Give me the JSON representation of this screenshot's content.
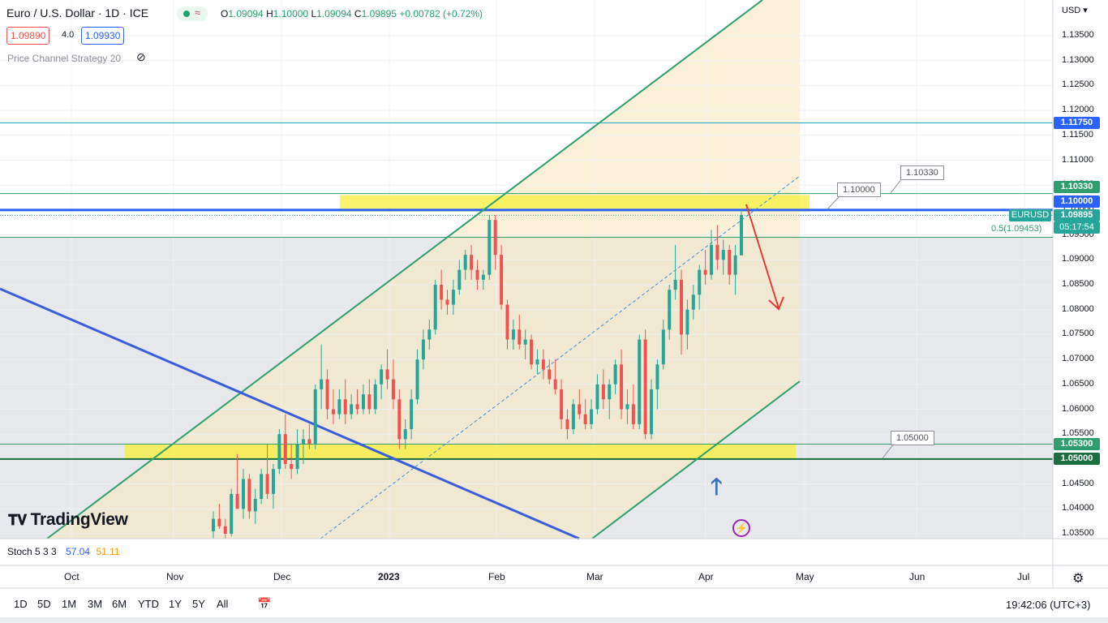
{
  "header": {
    "symbol_title": "Euro / U.S. Dollar · 1D · ICE",
    "ohlc": {
      "o_label": "O",
      "o_value": "1.09094",
      "h_label": "H",
      "h_value": "1.10000",
      "l_label": "L",
      "l_value": "1.09094",
      "c_label": "C",
      "c_value": "1.09895",
      "change": "+0.00782 (+0.72%)"
    },
    "sell_price": "1.09890",
    "spread": "4.0",
    "buy_price": "1.09930",
    "indicator_name": "Price Channel Strategy 20"
  },
  "price_axis": {
    "currency": "USD",
    "ticks": [
      "1.13500",
      "1.13000",
      "1.12500",
      "1.12000",
      "1.11500",
      "1.11000",
      "1.10500",
      "1.10000",
      "1.09500",
      "1.09000",
      "1.08500",
      "1.08000",
      "1.07500",
      "1.07000",
      "1.06500",
      "1.06000",
      "1.05500",
      "1.05000",
      "1.04500",
      "1.04000",
      "1.03500"
    ]
  },
  "price_tags": {
    "level_1": "1.11750",
    "level_2": "1.10330",
    "level_3": "1.10000",
    "symbol": "EURUSD",
    "last": "1.09895",
    "countdown": "05:17:54",
    "fib": "0.5(1.09453)",
    "level_4": "1.05300",
    "level_5": "1.05000"
  },
  "callouts": {
    "c1": "1.10330",
    "c2": "1.10000",
    "c3": "1.05000"
  },
  "time_axis": [
    "Oct",
    "Nov",
    "Dec",
    "2023",
    "Feb",
    "Mar",
    "Apr",
    "May",
    "Jun",
    "Jul"
  ],
  "stochastic": {
    "name": "Stoch 5 3 3",
    "k": "57.04",
    "d": "51.11"
  },
  "watermark": "TradingView",
  "timeframes": [
    "1D",
    "5D",
    "1M",
    "3M",
    "6M",
    "YTD",
    "1Y",
    "5Y",
    "All"
  ],
  "clock": "19:42:06 (UTC+3)",
  "colors": {
    "up": "#26a69a",
    "down": "#ef5350",
    "channel": "#2e9e6e",
    "trendline": "#3a5ed9",
    "highlight": "#f7f03a",
    "level_line": "#2962ff"
  },
  "chart_data": {
    "type": "candlestick",
    "y_unit": "USD",
    "ylim": [
      1.0335,
      1.1385
    ],
    "candles": [
      [
        1.0355,
        1.0395,
        1.034,
        1.038
      ],
      [
        1.038,
        1.041,
        1.036,
        1.0365
      ],
      [
        1.0365,
        1.038,
        1.034,
        1.035
      ],
      [
        1.035,
        1.044,
        1.0345,
        1.043
      ],
      [
        1.043,
        1.051,
        1.04,
        1.04
      ],
      [
        1.04,
        1.048,
        1.038,
        1.046
      ],
      [
        1.046,
        1.047,
        1.038,
        1.0395
      ],
      [
        1.0395,
        1.044,
        1.037,
        1.042
      ],
      [
        1.042,
        1.048,
        1.041,
        1.047
      ],
      [
        1.047,
        1.053,
        1.042,
        1.043
      ],
      [
        1.043,
        1.049,
        1.04,
        1.048
      ],
      [
        1.048,
        1.056,
        1.047,
        1.055
      ],
      [
        1.055,
        1.059,
        1.048,
        1.049
      ],
      [
        1.049,
        1.053,
        1.046,
        1.048
      ],
      [
        1.048,
        1.056,
        1.047,
        1.053
      ],
      [
        1.053,
        1.056,
        1.049,
        1.054
      ],
      [
        1.054,
        1.057,
        1.052,
        1.053
      ],
      [
        1.053,
        1.065,
        1.052,
        1.064
      ],
      [
        1.064,
        1.073,
        1.06,
        1.066
      ],
      [
        1.066,
        1.068,
        1.058,
        1.06
      ],
      [
        1.06,
        1.064,
        1.057,
        1.059
      ],
      [
        1.059,
        1.064,
        1.058,
        1.062
      ],
      [
        1.062,
        1.066,
        1.057,
        1.059
      ],
      [
        1.059,
        1.063,
        1.058,
        1.061
      ],
      [
        1.061,
        1.064,
        1.059,
        1.06
      ],
      [
        1.06,
        1.065,
        1.059,
        1.063
      ],
      [
        1.063,
        1.066,
        1.059,
        1.06
      ],
      [
        1.06,
        1.066,
        1.059,
        1.065
      ],
      [
        1.065,
        1.069,
        1.062,
        1.068
      ],
      [
        1.068,
        1.072,
        1.064,
        1.066
      ],
      [
        1.066,
        1.07,
        1.06,
        1.062
      ],
      [
        1.062,
        1.064,
        1.052,
        1.054
      ],
      [
        1.054,
        1.058,
        1.052,
        1.056
      ],
      [
        1.056,
        1.064,
        1.054,
        1.062
      ],
      [
        1.062,
        1.072,
        1.061,
        1.07
      ],
      [
        1.07,
        1.076,
        1.068,
        1.074
      ],
      [
        1.074,
        1.078,
        1.072,
        1.076
      ],
      [
        1.076,
        1.086,
        1.075,
        1.085
      ],
      [
        1.085,
        1.088,
        1.08,
        1.082
      ],
      [
        1.082,
        1.084,
        1.079,
        1.081
      ],
      [
        1.081,
        1.086,
        1.079,
        1.084
      ],
      [
        1.084,
        1.09,
        1.083,
        1.088
      ],
      [
        1.088,
        1.092,
        1.086,
        1.091
      ],
      [
        1.091,
        1.093,
        1.086,
        1.088
      ],
      [
        1.088,
        1.09,
        1.084,
        1.086
      ],
      [
        1.086,
        1.088,
        1.084,
        1.087
      ],
      [
        1.087,
        1.099,
        1.086,
        1.098
      ],
      [
        1.098,
        1.099,
        1.088,
        1.091
      ],
      [
        1.091,
        1.093,
        1.08,
        1.081
      ],
      [
        1.081,
        1.082,
        1.072,
        1.074
      ],
      [
        1.074,
        1.078,
        1.072,
        1.076
      ],
      [
        1.076,
        1.079,
        1.072,
        1.073
      ],
      [
        1.073,
        1.076,
        1.07,
        1.074
      ],
      [
        1.074,
        1.075,
        1.068,
        1.069
      ],
      [
        1.069,
        1.072,
        1.067,
        1.07
      ],
      [
        1.07,
        1.072,
        1.066,
        1.068
      ],
      [
        1.068,
        1.07,
        1.065,
        1.066
      ],
      [
        1.066,
        1.07,
        1.063,
        1.064
      ],
      [
        1.064,
        1.066,
        1.056,
        1.058
      ],
      [
        1.058,
        1.06,
        1.054,
        1.056
      ],
      [
        1.056,
        1.062,
        1.055,
        1.061
      ],
      [
        1.061,
        1.064,
        1.058,
        1.059
      ],
      [
        1.059,
        1.062,
        1.056,
        1.057
      ],
      [
        1.057,
        1.062,
        1.056,
        1.06
      ],
      [
        1.06,
        1.067,
        1.059,
        1.065
      ],
      [
        1.065,
        1.068,
        1.06,
        1.062
      ],
      [
        1.062,
        1.066,
        1.058,
        1.065
      ],
      [
        1.065,
        1.07,
        1.063,
        1.069
      ],
      [
        1.069,
        1.072,
        1.058,
        1.06
      ],
      [
        1.06,
        1.064,
        1.057,
        1.061
      ],
      [
        1.061,
        1.065,
        1.056,
        1.057
      ],
      [
        1.057,
        1.075,
        1.056,
        1.074
      ],
      [
        1.074,
        1.076,
        1.054,
        1.055
      ],
      [
        1.055,
        1.066,
        1.054,
        1.064
      ],
      [
        1.064,
        1.07,
        1.06,
        1.069
      ],
      [
        1.069,
        1.078,
        1.068,
        1.076
      ],
      [
        1.076,
        1.085,
        1.074,
        1.084
      ],
      [
        1.084,
        1.093,
        1.082,
        1.086
      ],
      [
        1.086,
        1.088,
        1.071,
        1.075
      ],
      [
        1.075,
        1.082,
        1.072,
        1.08
      ],
      [
        1.08,
        1.085,
        1.078,
        1.083
      ],
      [
        1.083,
        1.089,
        1.08,
        1.088
      ],
      [
        1.088,
        1.092,
        1.085,
        1.087
      ],
      [
        1.087,
        1.096,
        1.086,
        1.093
      ],
      [
        1.093,
        1.097,
        1.088,
        1.09
      ],
      [
        1.09,
        1.094,
        1.087,
        1.092
      ],
      [
        1.092,
        1.093,
        1.085,
        1.087
      ],
      [
        1.087,
        1.093,
        1.083,
        1.0909
      ],
      [
        1.0909,
        1.1,
        1.0909,
        1.099
      ]
    ],
    "annotations": {
      "resistance_zone": [
        1.0997,
        1.103
      ],
      "support_zone": [
        1.05,
        1.053
      ],
      "fib_level": 1.09453,
      "horizontal_level": 1.1175
    }
  }
}
